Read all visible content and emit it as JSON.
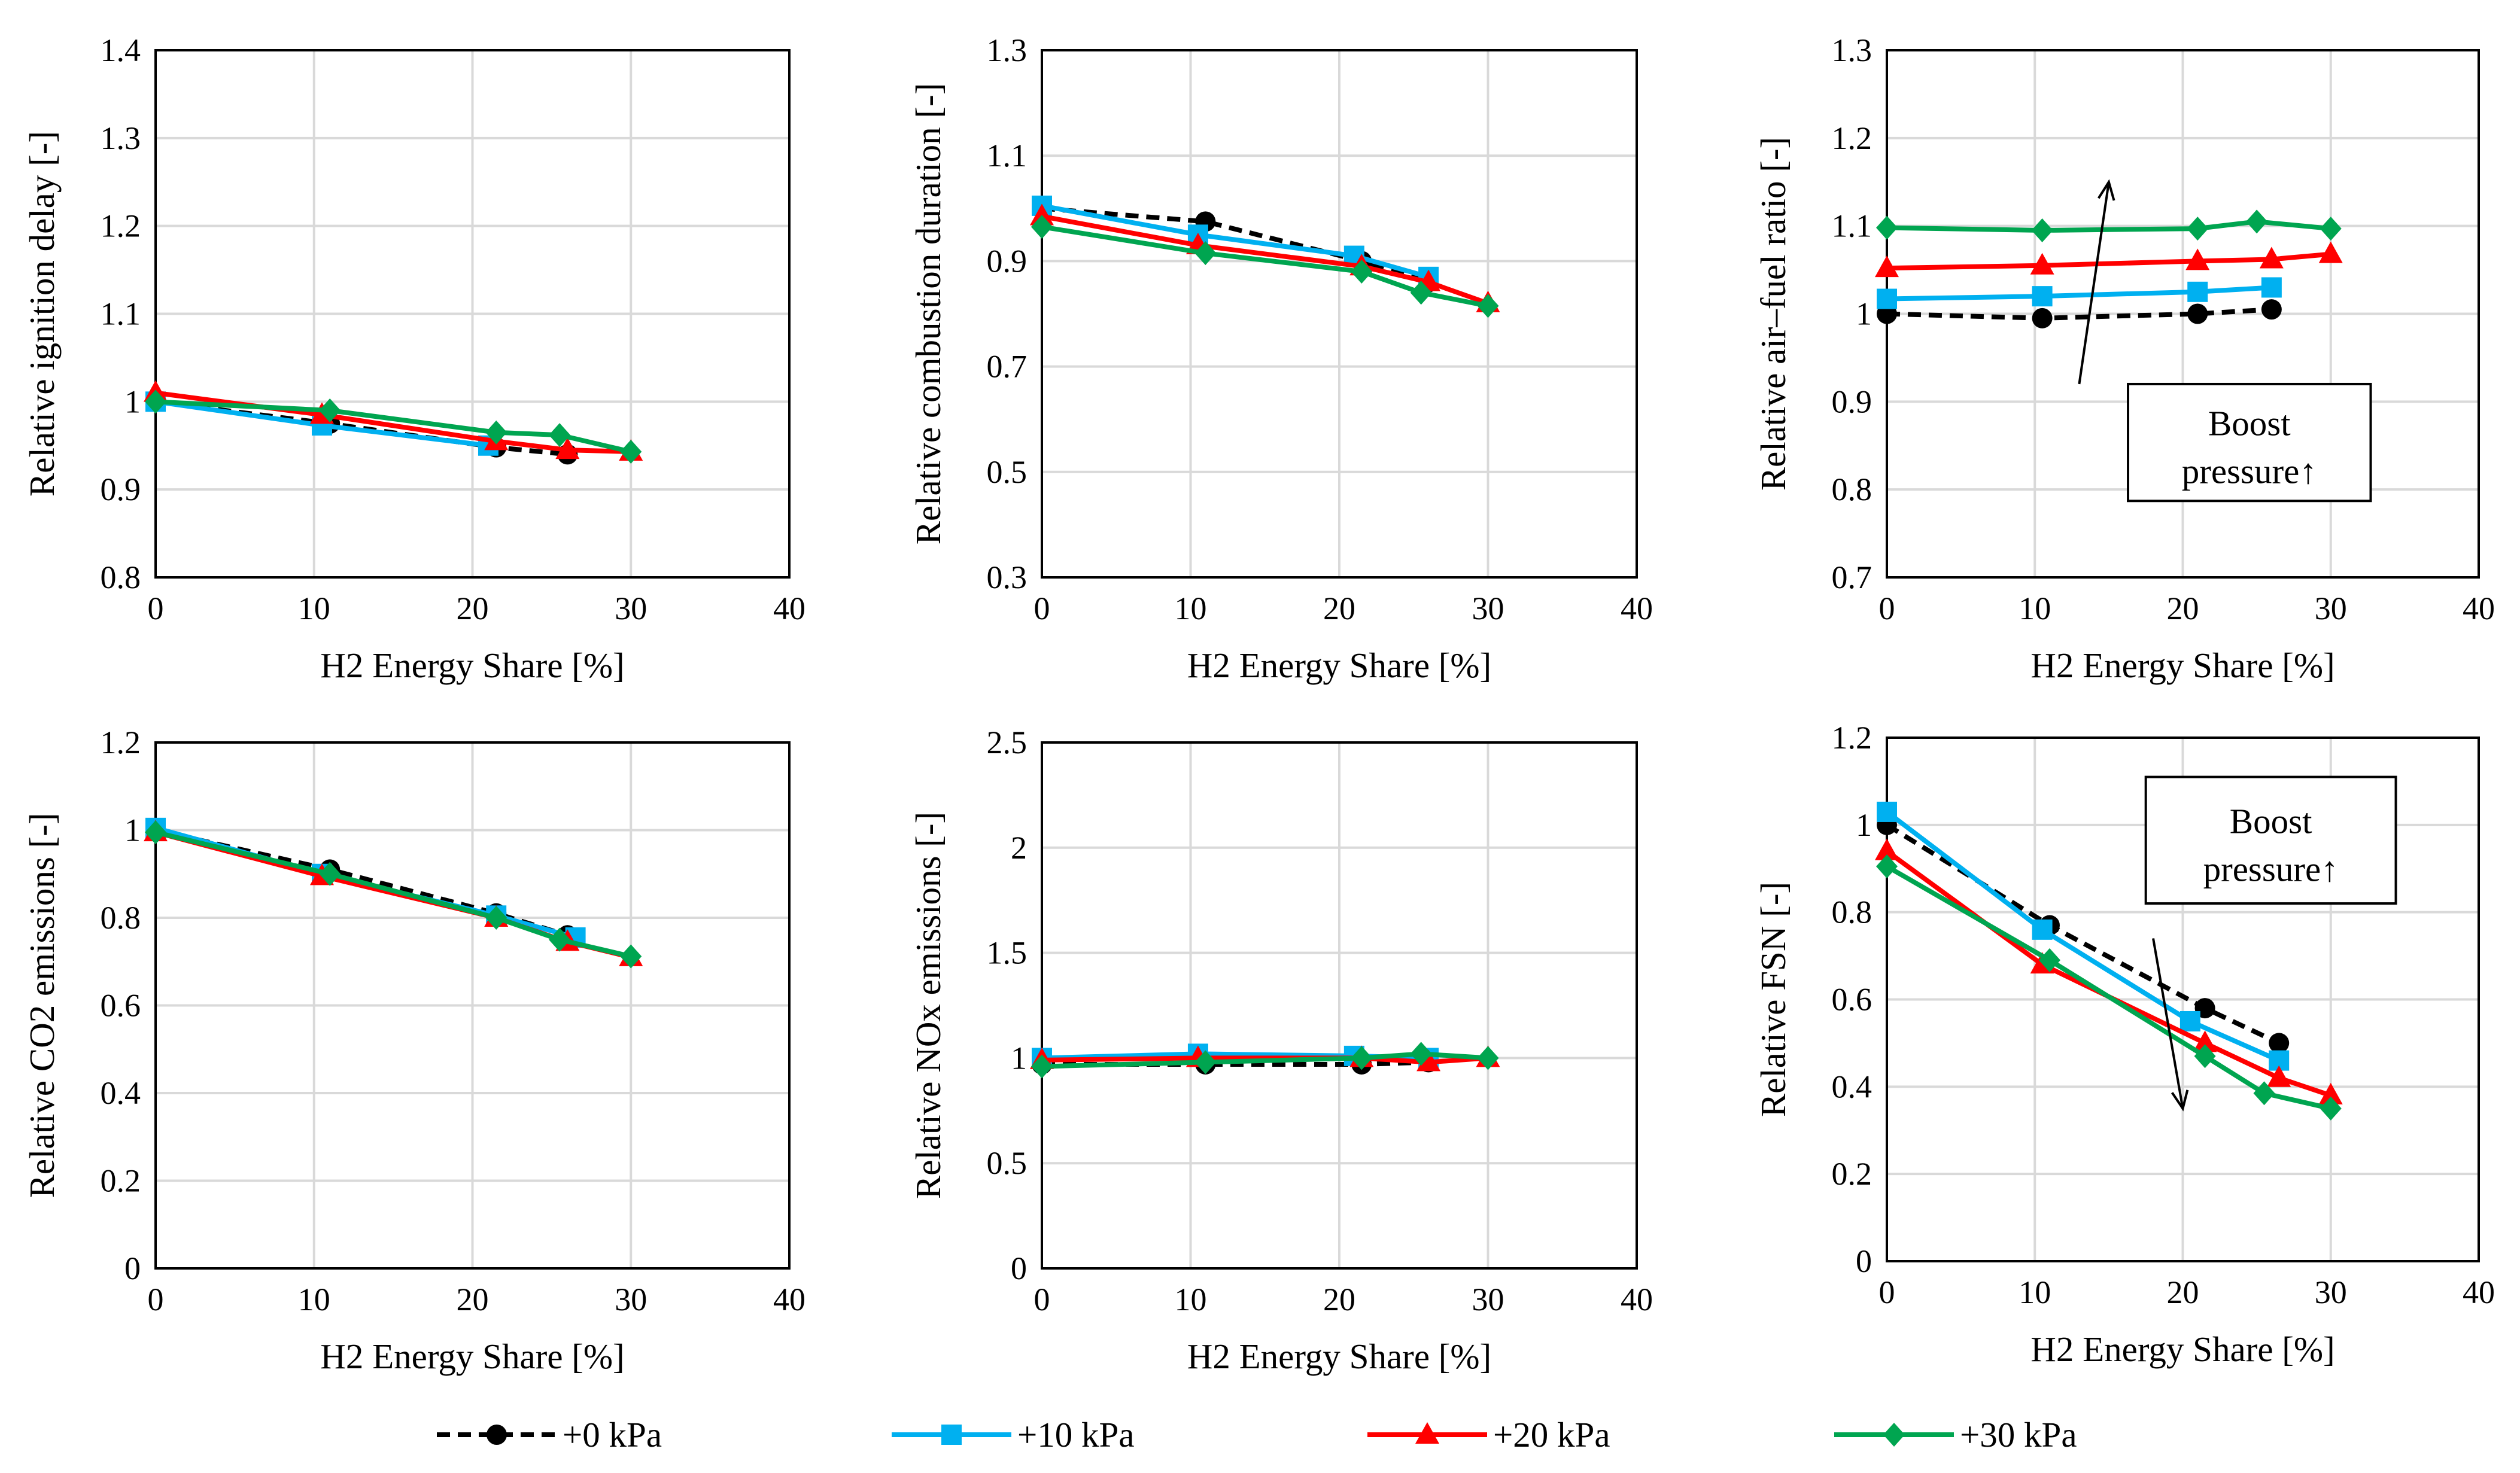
{
  "series_styles": [
    {
      "name": "+0 kPa",
      "color": "#000000",
      "dash": true,
      "marker": "circle"
    },
    {
      "name": "+10 kPa",
      "color": "#00B0F0",
      "dash": false,
      "marker": "square"
    },
    {
      "name": "+20 kPa",
      "color": "#FF0000",
      "dash": false,
      "marker": "triangle"
    },
    {
      "name": "+30 kPa",
      "color": "#00A550",
      "dash": false,
      "marker": "diamond"
    }
  ],
  "chart_data": [
    {
      "type": "line",
      "title": "",
      "xlabel": "H2 Energy Share [%]",
      "ylabel": "Relative ignition delay [-]",
      "xlim": [
        0,
        40
      ],
      "xticks": [
        0,
        10,
        20,
        30,
        40
      ],
      "ylim": [
        0.8,
        1.4
      ],
      "yticks": [
        0.8,
        0.9,
        1,
        1.1,
        1.2,
        1.3,
        1.4
      ],
      "grid": true,
      "series": [
        {
          "name": "+0 kPa",
          "x": [
            0,
            11,
            21.5,
            26
          ],
          "y": [
            1.0,
            0.975,
            0.948,
            0.94
          ]
        },
        {
          "name": "+10 kPa",
          "x": [
            0,
            10.5,
            21
          ],
          "y": [
            1.0,
            0.973,
            0.95
          ]
        },
        {
          "name": "+20 kPa",
          "x": [
            0,
            10.5,
            21.5,
            26,
            30
          ],
          "y": [
            1.01,
            0.985,
            0.955,
            0.945,
            0.943
          ]
        },
        {
          "name": "+30 kPa",
          "x": [
            0,
            11,
            21.5,
            25.5,
            30
          ],
          "y": [
            1.0,
            0.99,
            0.965,
            0.962,
            0.943
          ]
        }
      ],
      "annotations": []
    },
    {
      "type": "line",
      "title": "",
      "xlabel": "H2 Energy Share [%]",
      "ylabel": "Relative combustion duration [-]",
      "xlim": [
        0,
        40
      ],
      "xticks": [
        0,
        10,
        20,
        30,
        40
      ],
      "ylim": [
        0.3,
        1.3
      ],
      "yticks": [
        0.3,
        0.5,
        0.7,
        0.9,
        1.1,
        1.3
      ],
      "grid": true,
      "series": [
        {
          "name": "+0 kPa",
          "x": [
            0,
            11,
            21.5,
            26
          ],
          "y": [
            1.0,
            0.975,
            0.9,
            0.86
          ]
        },
        {
          "name": "+10 kPa",
          "x": [
            0,
            10.5,
            21,
            26
          ],
          "y": [
            1.005,
            0.95,
            0.91,
            0.87
          ]
        },
        {
          "name": "+20 kPa",
          "x": [
            0,
            10.5,
            21.5,
            26,
            30
          ],
          "y": [
            0.985,
            0.93,
            0.89,
            0.86,
            0.82
          ]
        },
        {
          "name": "+30 kPa",
          "x": [
            0,
            11,
            21.5,
            25.5,
            30
          ],
          "y": [
            0.965,
            0.915,
            0.88,
            0.84,
            0.815
          ]
        }
      ],
      "annotations": []
    },
    {
      "type": "line",
      "title": "",
      "xlabel": "H2 Energy Share [%]",
      "ylabel": "Relative air–fuel ratio [-]",
      "xlim": [
        0,
        40
      ],
      "xticks": [
        0,
        10,
        20,
        30,
        40
      ],
      "ylim": [
        0.7,
        1.3
      ],
      "yticks": [
        0.7,
        0.8,
        0.9,
        1,
        1.1,
        1.2,
        1.3
      ],
      "grid": true,
      "series": [
        {
          "name": "+0 kPa",
          "x": [
            0,
            10.5,
            21,
            26
          ],
          "y": [
            1.0,
            0.995,
            1.0,
            1.005
          ]
        },
        {
          "name": "+10 kPa",
          "x": [
            0,
            10.5,
            21,
            26
          ],
          "y": [
            1.017,
            1.02,
            1.025,
            1.03
          ]
        },
        {
          "name": "+20 kPa",
          "x": [
            0,
            10.5,
            21,
            26,
            30
          ],
          "y": [
            1.052,
            1.055,
            1.06,
            1.062,
            1.068
          ]
        },
        {
          "name": "+30 kPa",
          "x": [
            0,
            10.5,
            21,
            25,
            30
          ],
          "y": [
            1.098,
            1.095,
            1.097,
            1.105,
            1.097
          ]
        }
      ],
      "annotations": [
        {
          "text_lines": [
            "Boost",
            "pressure↑"
          ],
          "arrow": {
            "from": [
              13,
              0.92
            ],
            "to": [
              15,
              1.15
            ]
          },
          "box": {
            "x": [
              16.3,
              32.7
            ],
            "y": [
              0.787,
              0.92
            ]
          }
        }
      ]
    },
    {
      "type": "line",
      "title": "",
      "xlabel": "H2 Energy Share [%]",
      "ylabel": "Relative CO2 emissions [-]",
      "xlim": [
        0,
        40
      ],
      "xticks": [
        0,
        10,
        20,
        30,
        40
      ],
      "ylim": [
        0,
        1.2
      ],
      "yticks": [
        0,
        0.2,
        0.4,
        0.6,
        0.8,
        1,
        1.2
      ],
      "grid": true,
      "series": [
        {
          "name": "+0 kPa",
          "x": [
            0,
            11,
            21.5,
            26
          ],
          "y": [
            1.0,
            0.91,
            0.81,
            0.76
          ]
        },
        {
          "name": "+10 kPa",
          "x": [
            0,
            10.5,
            21.5,
            26.5
          ],
          "y": [
            1.005,
            0.9,
            0.805,
            0.755
          ]
        },
        {
          "name": "+20 kPa",
          "x": [
            0,
            10.5,
            21.5,
            26,
            30
          ],
          "y": [
            0.995,
            0.895,
            0.8,
            0.745,
            0.71
          ]
        },
        {
          "name": "+30 kPa",
          "x": [
            0,
            11,
            21.5,
            25.5,
            30
          ],
          "y": [
            0.995,
            0.9,
            0.8,
            0.75,
            0.712
          ]
        }
      ],
      "annotations": []
    },
    {
      "type": "line",
      "title": "",
      "xlabel": "H2 Energy Share [%]",
      "ylabel": "Relative NOx emissions [-]",
      "xlim": [
        0,
        40
      ],
      "xticks": [
        0,
        10,
        20,
        30,
        40
      ],
      "ylim": [
        0,
        2.5
      ],
      "yticks": [
        0,
        0.5,
        1,
        1.5,
        2,
        2.5
      ],
      "grid": true,
      "series": [
        {
          "name": "+0 kPa",
          "x": [
            0,
            11,
            21.5,
            26
          ],
          "y": [
            0.97,
            0.97,
            0.97,
            0.98
          ]
        },
        {
          "name": "+10 kPa",
          "x": [
            0,
            10.5,
            21,
            26
          ],
          "y": [
            1.0,
            1.02,
            1.01,
            1.0
          ]
        },
        {
          "name": "+20 kPa",
          "x": [
            0,
            10.5,
            21.5,
            26,
            30
          ],
          "y": [
            0.99,
            1.0,
            1.0,
            0.98,
            1.0
          ]
        },
        {
          "name": "+30 kPa",
          "x": [
            0,
            11,
            21.5,
            25.5,
            30
          ],
          "y": [
            0.96,
            0.98,
            1.0,
            1.02,
            1.0
          ]
        }
      ],
      "annotations": []
    },
    {
      "type": "line",
      "title": "",
      "xlabel": "H2 Energy Share [%]",
      "ylabel": "Relative FSN [-]",
      "xlim": [
        0,
        40
      ],
      "xticks": [
        0,
        10,
        20,
        30,
        40
      ],
      "ylim": [
        0,
        1.2
      ],
      "yticks": [
        0,
        0.2,
        0.4,
        0.6,
        0.8,
        1,
        1.2
      ],
      "grid": true,
      "series": [
        {
          "name": "+0 kPa",
          "x": [
            0,
            11,
            21.5,
            26.5
          ],
          "y": [
            1.0,
            0.77,
            0.58,
            0.5
          ]
        },
        {
          "name": "+10 kPa",
          "x": [
            0,
            10.5,
            20.5,
            26.5
          ],
          "y": [
            1.03,
            0.76,
            0.55,
            0.46
          ]
        },
        {
          "name": "+20 kPa",
          "x": [
            0,
            10.5,
            21.5,
            26.5,
            30
          ],
          "y": [
            0.94,
            0.68,
            0.5,
            0.42,
            0.38
          ]
        },
        {
          "name": "+30 kPa",
          "x": [
            0,
            11,
            21.5,
            25.5,
            30
          ],
          "y": [
            0.905,
            0.69,
            0.47,
            0.385,
            0.35
          ]
        }
      ],
      "annotations": [
        {
          "text_lines": [
            "Boost",
            "pressure↑"
          ],
          "arrow": {
            "from": [
              18,
              0.74
            ],
            "to": [
              20,
              0.35
            ]
          },
          "box": {
            "x": [
              17.5,
              34.4
            ],
            "y": [
              0.82,
              1.11
            ]
          }
        }
      ]
    }
  ]
}
